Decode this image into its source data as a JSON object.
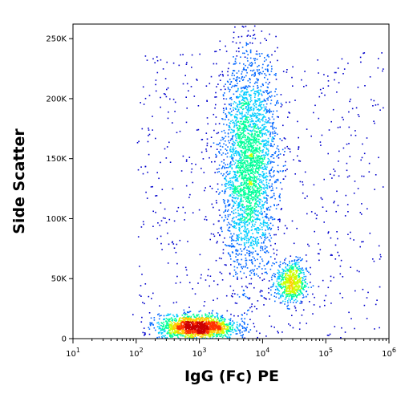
{
  "chart_data": {
    "type": "scatter",
    "style": "flow-cytometry pseudocolor density dot plot",
    "xlabel": "IgG (Fc) PE",
    "ylabel": "Side Scatter",
    "x_scale": "log",
    "xlim": [
      10,
      1000000
    ],
    "ylim": [
      0,
      262144
    ],
    "x_ticks": [
      {
        "value": 10,
        "base": "10",
        "exp": "1"
      },
      {
        "value": 100,
        "base": "10",
        "exp": "2"
      },
      {
        "value": 1000,
        "base": "10",
        "exp": "3"
      },
      {
        "value": 10000,
        "base": "10",
        "exp": "4"
      },
      {
        "value": 100000,
        "base": "10",
        "exp": "5"
      },
      {
        "value": 1000000,
        "base": "10",
        "exp": "6"
      }
    ],
    "y_ticks": [
      {
        "value": 0,
        "label": "0"
      },
      {
        "value": 50000,
        "label": "50K"
      },
      {
        "value": 100000,
        "label": "100K"
      },
      {
        "value": 150000,
        "label": "150K"
      },
      {
        "value": 200000,
        "label": "200K"
      },
      {
        "value": 250000,
        "label": "250K"
      }
    ],
    "populations": [
      {
        "x_center": 6000,
        "y_center": 145000,
        "x_spread_decades": 0.22,
        "y_spread": 45000,
        "weight": 0.55
      },
      {
        "x_center": 28000,
        "y_center": 47000,
        "x_spread_decades": 0.12,
        "y_spread": 9000,
        "weight": 0.12
      },
      {
        "x_center": 900,
        "y_center": 10000,
        "x_spread_decades": 0.3,
        "y_spread": 5000,
        "weight": 0.33
      }
    ],
    "color_scale": [
      "#0000cc",
      "#0066ff",
      "#00ccff",
      "#00ff99",
      "#ccff00",
      "#ffcc00",
      "#ff3300",
      "#cc0000"
    ],
    "grid": false,
    "legend": "none"
  }
}
